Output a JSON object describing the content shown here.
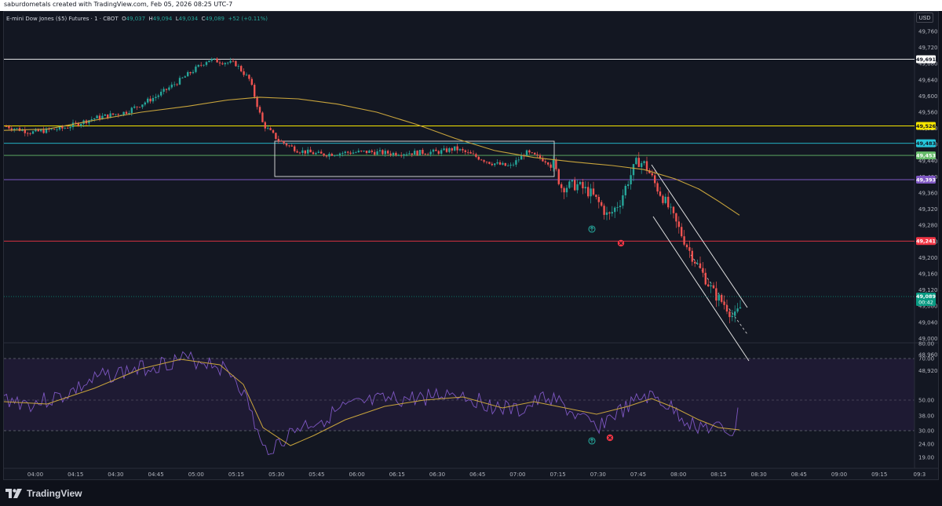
{
  "header": {
    "attribution": "saburdometals created with TradingView.com, Feb 05, 2026 08:25 UTC-7"
  },
  "symbol": {
    "name": "E-mini Dow Jones ($5) Futures · 1 · CBOT",
    "open_label": "O",
    "open": "49,037",
    "high_label": "H",
    "high": "49,094",
    "low_label": "L",
    "low": "49,034",
    "close_label": "C",
    "close": "49,089",
    "change": "+52 (+0.11%)"
  },
  "currency": "USD",
  "price_axis": {
    "ticks": [
      "49,760",
      "49,720",
      "49,680",
      "49,640",
      "49,600",
      "49,560",
      "49,520",
      "49,480",
      "49,440",
      "49,400",
      "49,360",
      "49,320",
      "49,280",
      "49,240",
      "49,200",
      "49,160",
      "49,120",
      "49,080",
      "49,040",
      "49,000",
      "48,960",
      "48,920"
    ],
    "range": [
      48920,
      49780
    ]
  },
  "levels": [
    {
      "price": 49691,
      "label": "49,691",
      "color": "#ffffff",
      "text_color": "#131722"
    },
    {
      "price": 49526,
      "label": "49,526",
      "color": "#f7e600",
      "text_color": "#131722"
    },
    {
      "price": 49483,
      "label": "49,483",
      "color": "#26c6da",
      "text_color": "#131722"
    },
    {
      "price": 49453,
      "label": "49,453",
      "color": "#66bb6a",
      "text_color": "#ffffff"
    },
    {
      "price": 49393,
      "label": "49,393",
      "color": "#7e57c2",
      "text_color": "#ffffff"
    },
    {
      "price": 49241,
      "label": "49,241",
      "color": "#f23645",
      "text_color": "#ffffff"
    }
  ],
  "last_price": {
    "label": "49,089",
    "countdown": "00:42",
    "color": "#089981"
  },
  "rsi_axis": {
    "ticks": [
      "80.00",
      "70.00",
      "50.00",
      "38.00",
      "30.00",
      "24.00",
      "19.00"
    ]
  },
  "time_axis": {
    "labels": [
      "04:00",
      "04:15",
      "04:30",
      "04:45",
      "05:00",
      "05:15",
      "05:30",
      "05:45",
      "06:00",
      "06:15",
      "06:30",
      "06:45",
      "07:00",
      "07:15",
      "07:30",
      "07:45",
      "08:00",
      "08:15",
      "08:30",
      "08:45",
      "09:00",
      "09:15",
      "09:3"
    ]
  },
  "colors": {
    "up": "#26a69a",
    "down": "#ef5350",
    "ma": "#c8a43c",
    "rsi": "#7e57c2",
    "rsi_ma": "#c8a43c",
    "background": "#131722"
  },
  "brand": {
    "name": "TradingView",
    "icon": "tradingview-logo-icon"
  }
}
